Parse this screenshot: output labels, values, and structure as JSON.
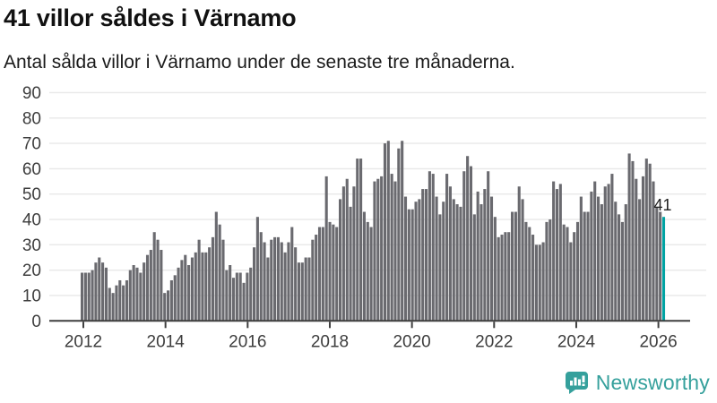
{
  "header": {
    "title": "41 villor såldes i Värnamo",
    "subtitle": "Antal sålda villor i Värnamo under de senaste tre månaderna."
  },
  "chart_data": {
    "type": "bar",
    "x_unit": "month",
    "start": {
      "year": 2012,
      "month": 1
    },
    "end": {
      "year": 2026,
      "month": 2
    },
    "values": [
      19,
      19,
      19,
      20,
      23,
      25,
      23,
      21,
      13,
      11,
      14,
      16,
      14,
      16,
      20,
      22,
      21,
      19,
      23,
      26,
      28,
      35,
      32,
      28,
      11,
      12,
      16,
      18,
      21,
      24,
      26,
      22,
      25,
      27,
      32,
      27,
      27,
      29,
      33,
      43,
      38,
      32,
      20,
      22,
      17,
      19,
      19,
      15,
      19,
      21,
      29,
      41,
      35,
      31,
      25,
      32,
      33,
      33,
      31,
      27,
      31,
      37,
      29,
      23,
      23,
      25,
      25,
      32,
      34,
      37,
      37,
      57,
      39,
      38,
      37,
      48,
      53,
      56,
      45,
      53,
      64,
      64,
      43,
      39,
      37,
      55,
      56,
      57,
      70,
      71,
      58,
      55,
      68,
      71,
      49,
      44,
      44,
      47,
      48,
      52,
      52,
      59,
      58,
      49,
      42,
      47,
      58,
      53,
      48,
      46,
      45,
      59,
      65,
      61,
      42,
      51,
      46,
      52,
      59,
      49,
      41,
      33,
      34,
      35,
      35,
      43,
      43,
      53,
      48,
      39,
      37,
      34,
      30,
      30,
      31,
      39,
      40,
      55,
      52,
      54,
      38,
      37,
      31,
      35,
      39,
      49,
      43,
      43,
      51,
      55,
      49,
      46,
      53,
      54,
      58,
      47,
      42,
      39,
      46,
      66,
      63,
      56,
      48,
      57,
      64,
      62,
      55,
      45,
      43,
      41
    ],
    "highlight_last": true,
    "last_value_label": "41",
    "ylim": [
      0,
      90
    ],
    "yticks": [
      0,
      10,
      20,
      30,
      40,
      50,
      60,
      70,
      80,
      90
    ],
    "xticks": [
      2012,
      2014,
      2016,
      2018,
      2020,
      2022,
      2024,
      2026
    ],
    "grid": true,
    "legend": "none",
    "colors": {
      "bar": "#6a6a6f",
      "highlight": "#00a3a3",
      "gridline": "#e8e8e8",
      "axis_line": "#3f3f3f",
      "tick_text": "#3d3d3d"
    }
  },
  "footer": {
    "brand": "Newsworthy",
    "brand_color": "#35a09c",
    "logo_icon": "newsworthy-speech-bubble-bar-chart-icon"
  }
}
